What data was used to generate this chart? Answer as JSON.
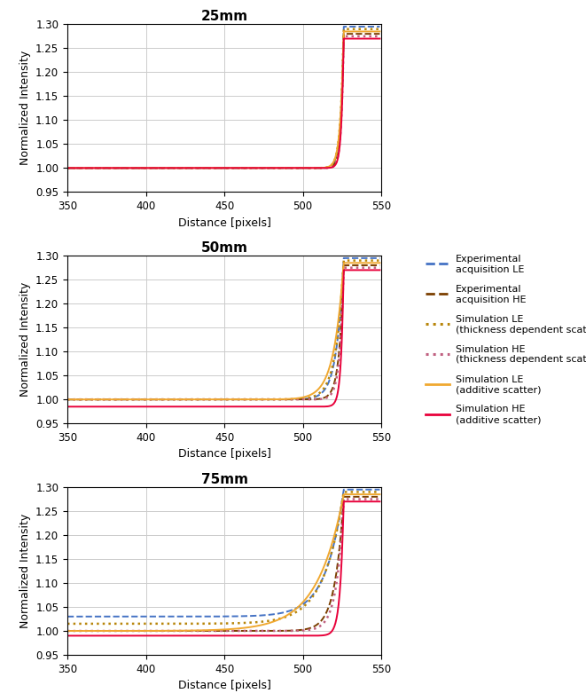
{
  "titles": [
    "25mm",
    "50mm",
    "75mm"
  ],
  "xlabel": "Distance [pixels]",
  "ylabel": "Normalized Intensity",
  "xlim": [
    350,
    550
  ],
  "ylim": [
    0.95,
    1.3
  ],
  "yticks": [
    0.95,
    1.0,
    1.05,
    1.1,
    1.15,
    1.2,
    1.25,
    1.3
  ],
  "xticks": [
    350,
    400,
    450,
    500,
    550
  ],
  "colors": {
    "exp_le": "#4472C4",
    "exp_he": "#7B3F00",
    "sim_le_thick": "#B8860B",
    "sim_he_thick": "#C06080",
    "sim_le_add": "#F0A830",
    "sim_he_add": "#E8003A"
  },
  "legend_labels": [
    "Experimental\nacquisition LE",
    "Experimental\nacquisition HE",
    "Simulation LE\n(thickness dependent scatte",
    "Simulation HE\n(thickness dependent scatte",
    "Simulation LE\n(additive scatter)",
    "Simulation HE\n(additive scatter)"
  ],
  "panels": {
    "p1": {
      "exp_le": {
        "edge": 526,
        "flat": 1.0,
        "k": 0.55,
        "peak": 1.295,
        "power": 3.5
      },
      "exp_he": {
        "edge": 526,
        "flat": 1.0,
        "k": 0.6,
        "peak": 1.28,
        "power": 3.8
      },
      "sim_le_t": {
        "edge": 526,
        "flat": 1.0,
        "k": 0.5,
        "peak": 1.29,
        "power": 3.2
      },
      "sim_he_t": {
        "edge": 526,
        "flat": 1.0,
        "k": 0.65,
        "peak": 1.275,
        "power": 4.0
      },
      "sim_le_add": {
        "edge": 526,
        "flat": 1.0,
        "k": 0.48,
        "peak": 1.285,
        "power": 3.0
      },
      "sim_he_add": {
        "edge": 526,
        "flat": 1.0,
        "k": 0.7,
        "peak": 1.27,
        "power": 4.2
      }
    },
    "p2": {
      "exp_le": {
        "edge": 526,
        "flat": 1.0,
        "k": 0.22,
        "peak": 1.295,
        "power": 2.2
      },
      "exp_he": {
        "edge": 526,
        "flat": 1.0,
        "k": 0.35,
        "peak": 1.28,
        "power": 2.8
      },
      "sim_le_t": {
        "edge": 526,
        "flat": 1.0,
        "k": 0.2,
        "peak": 1.29,
        "power": 2.0
      },
      "sim_he_t": {
        "edge": 526,
        "flat": 1.0,
        "k": 0.4,
        "peak": 1.275,
        "power": 3.0
      },
      "sim_le_add": {
        "edge": 526,
        "flat": 1.0,
        "k": 0.16,
        "peak": 1.285,
        "power": 1.8
      },
      "sim_he_add": {
        "edge": 526,
        "flat": 0.985,
        "k": 0.6,
        "peak": 1.27,
        "power": 3.5
      }
    },
    "p3": {
      "exp_le": {
        "edge": 526,
        "flat": 1.03,
        "k": 0.09,
        "peak": 1.295,
        "power": 1.5
      },
      "exp_he": {
        "edge": 526,
        "flat": 1.0,
        "k": 0.18,
        "peak": 1.28,
        "power": 2.0
      },
      "sim_le_t": {
        "edge": 526,
        "flat": 1.015,
        "k": 0.08,
        "peak": 1.29,
        "power": 1.4
      },
      "sim_he_t": {
        "edge": 526,
        "flat": 1.0,
        "k": 0.22,
        "peak": 1.275,
        "power": 2.2
      },
      "sim_le_add": {
        "edge": 526,
        "flat": 1.0,
        "k": 0.06,
        "peak": 1.285,
        "power": 1.2
      },
      "sim_he_add": {
        "edge": 526,
        "flat": 0.99,
        "k": 0.45,
        "peak": 1.27,
        "power": 3.0
      }
    }
  }
}
